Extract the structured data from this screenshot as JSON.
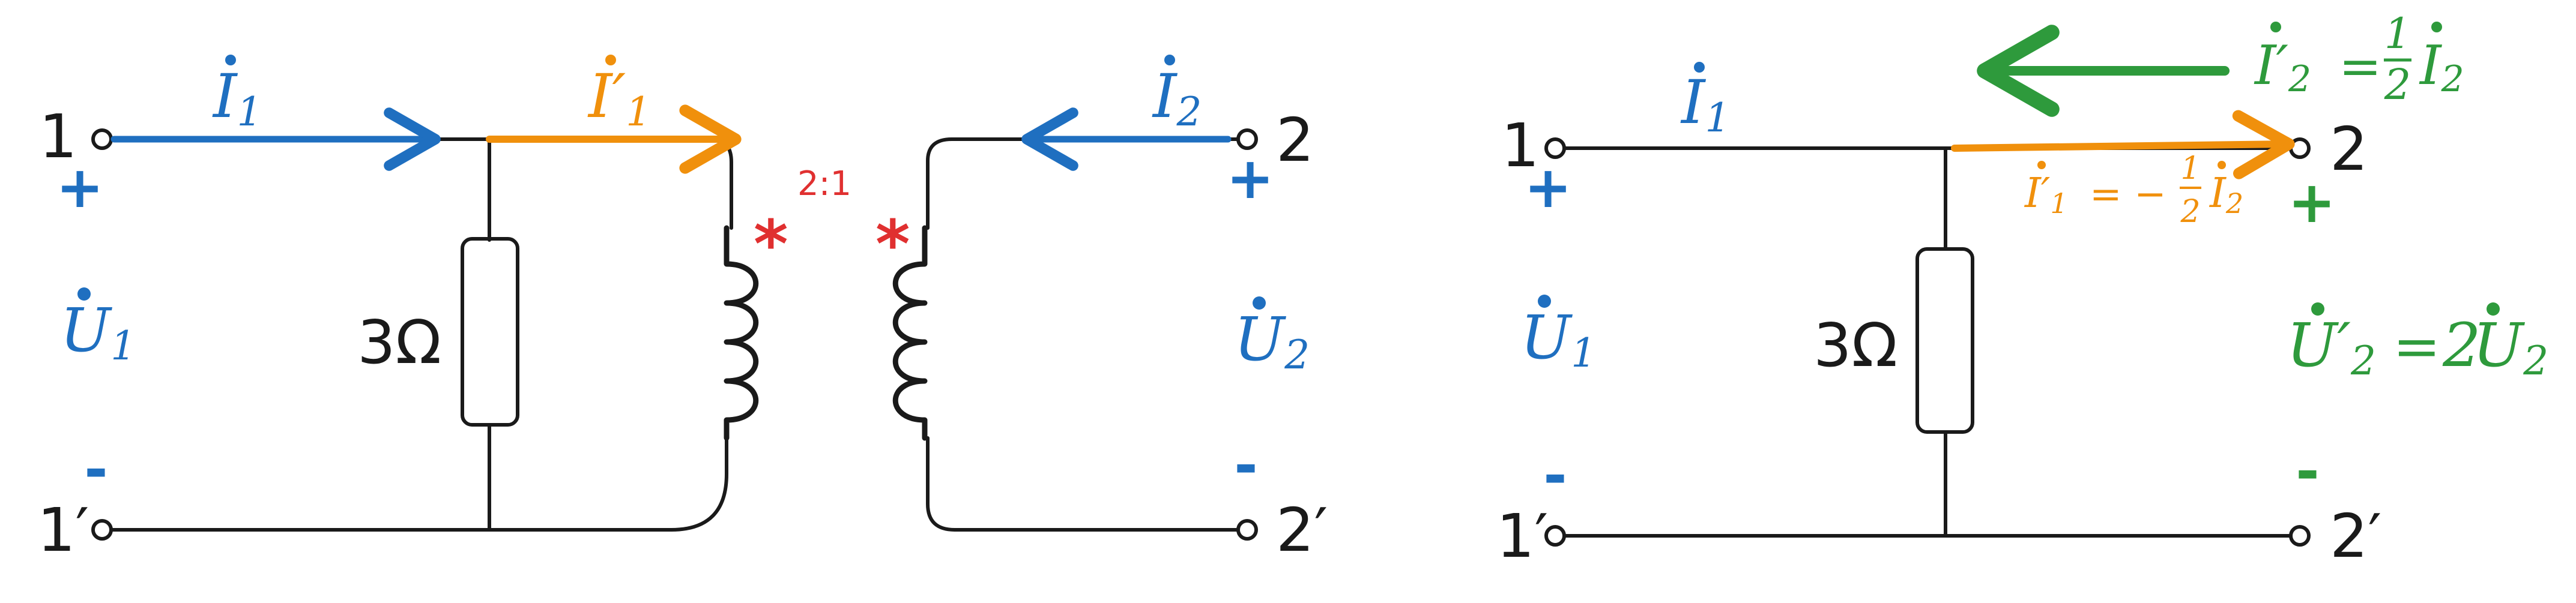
{
  "colors": {
    "wire": "#1a1a1a",
    "blue": "#1f6fc0",
    "orange": "#f0900c",
    "green": "#2e9a3c",
    "red": "#e03030"
  },
  "left": {
    "terminal_1": "1",
    "terminal_1p": "1′",
    "terminal_2": "2",
    "terminal_2p": "2′",
    "plus_1": "+",
    "minus_1": "-",
    "plus_2": "+",
    "minus_2": "-",
    "resistor": "3Ω",
    "ratio": "2:1",
    "dot_mark": "*",
    "I1": {
      "base": "I",
      "sub": "1"
    },
    "Ip1": {
      "base": "I′",
      "sub": "1"
    },
    "I2": {
      "base": "I",
      "sub": "2"
    },
    "U1": {
      "base": "U",
      "sub": "1"
    },
    "U2": {
      "base": "U",
      "sub": "2"
    }
  },
  "right": {
    "terminal_1": "1",
    "terminal_1p": "1′",
    "terminal_2": "2",
    "terminal_2p": "2′",
    "plus_1": "+",
    "minus_1": "-",
    "plus_2": "+",
    "minus_2": "-",
    "resistor": "3Ω",
    "I1": {
      "base": "I",
      "sub": "1"
    },
    "U1": {
      "base": "U",
      "sub": "1"
    },
    "eq_Ip2": {
      "lhs": "I′",
      "lhs_sub": "2",
      "eq": "=",
      "frac_num": "1",
      "frac_den": "2",
      "rhs": "I",
      "rhs_sub": "2"
    },
    "eq_Ip1": {
      "lhs": "I′",
      "lhs_sub": "1",
      "eq": "= −",
      "frac_num": "1",
      "frac_den": "2",
      "rhs": "I",
      "rhs_sub": "2"
    },
    "eq_Up2": {
      "lhs": "U′",
      "lhs_sub": "2",
      "eq": "=",
      "coef": "2",
      "rhs": "U",
      "rhs_sub": "2"
    }
  }
}
